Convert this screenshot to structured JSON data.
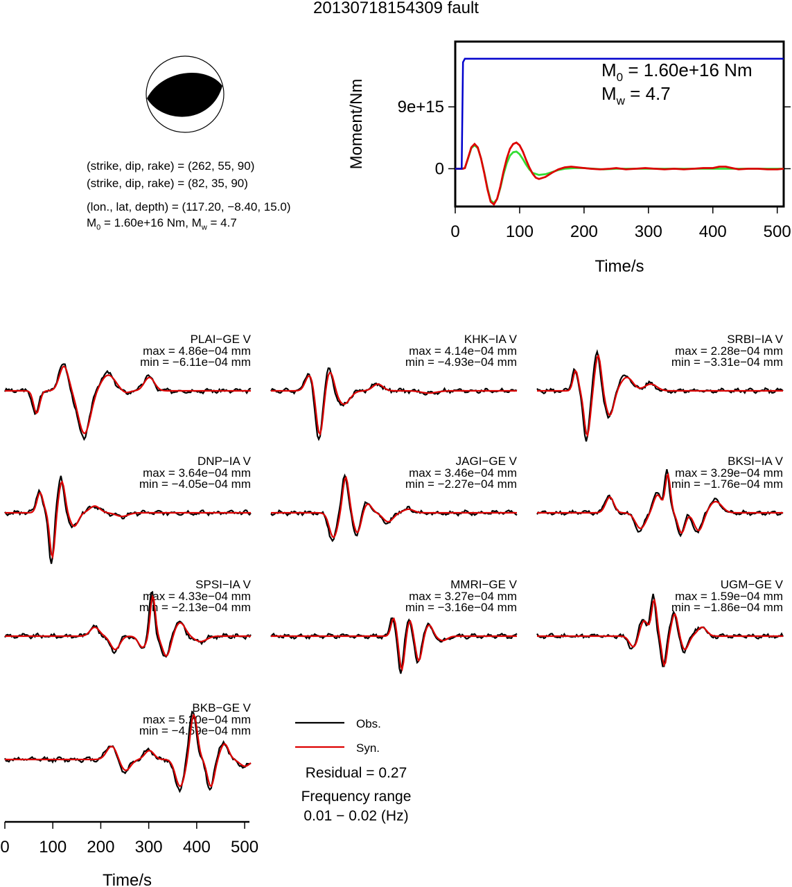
{
  "figure": {
    "title": "20130718154309 fault",
    "solution": {
      "plane1": "(strike, dip, rake) = (262, 55, 90)",
      "plane2": "(strike, dip, rake) = (82, 35, 90)",
      "location": "(lon., lat, depth) = (117.20, −8.40, 15.0)",
      "moment_line_prefix": "M",
      "moment_line_sub1": "0",
      "moment_line_mid": " = 1.60e+16 Nm, M",
      "moment_line_sub2": "w",
      "moment_line_suffix": " = 4.7"
    }
  },
  "chart_data": [
    {
      "type": "line",
      "id": "moment-rate",
      "xlabel": "Time/s",
      "ylabel": "Moment/Nm",
      "xlim": [
        0,
        510
      ],
      "ylim": [
        -5500000000000000.0,
        1.85e+16
      ],
      "xticks": [
        0,
        100,
        200,
        300,
        400,
        500
      ],
      "yticks": [
        {
          "value": 0,
          "label": "0"
        },
        {
          "value": 9000000000000000.0,
          "label": "9e+15"
        }
      ],
      "annotation": {
        "m0_sym": "M",
        "m0_sub": "0",
        "m0_val": " = 1.60e+16 Nm",
        "mw_sym": "M",
        "mw_sub": "w",
        "mw_val": " = 4.7"
      },
      "colors": {
        "cumulative": "#0000cc",
        "green": "#33dd33",
        "red": "#dd0000"
      },
      "series": [
        {
          "key": "cumulative",
          "points": [
            [
              0,
              0
            ],
            [
              10,
              0
            ],
            [
              12,
              1.55e+16
            ],
            [
              15,
              1.6e+16
            ],
            [
              510,
              1.6e+16
            ]
          ]
        },
        {
          "key": "green",
          "points": [
            [
              0,
              0
            ],
            [
              5,
              0
            ],
            [
              10,
              0
            ],
            [
              15,
              100000000000000.0
            ],
            [
              20,
              1500000000000000.0
            ],
            [
              25,
              3000000000000000.0
            ],
            [
              30,
              3400000000000000.0
            ],
            [
              35,
              3000000000000000.0
            ],
            [
              40,
              1500000000000000.0
            ],
            [
              45,
              -500000000000000.0
            ],
            [
              50,
              -2800000000000000.0
            ],
            [
              55,
              -4600000000000000.0
            ],
            [
              60,
              -5000000000000000.0
            ],
            [
              65,
              -4400000000000000.0
            ],
            [
              70,
              -2800000000000000.0
            ],
            [
              75,
              -800000000000000.0
            ],
            [
              80,
              800000000000000.0
            ],
            [
              85,
              1900000000000000.0
            ],
            [
              90,
              2400000000000000.0
            ],
            [
              95,
              2500000000000000.0
            ],
            [
              100,
              2100000000000000.0
            ],
            [
              105,
              1400000000000000.0
            ],
            [
              110,
              600000000000000.0
            ],
            [
              115,
              -100000000000000.0
            ],
            [
              120,
              -600000000000000.0
            ],
            [
              130,
              -900000000000000.0
            ],
            [
              140,
              -800000000000000.0
            ],
            [
              150,
              -500000000000000.0
            ],
            [
              160,
              -200000000000000.0
            ],
            [
              170,
              0
            ],
            [
              185,
              100000000000000.0
            ],
            [
              200,
              100000000000000.0
            ],
            [
              215,
              0
            ],
            [
              230,
              -100000000000000.0
            ],
            [
              250,
              0
            ],
            [
              270,
              0
            ],
            [
              290,
              0
            ],
            [
              320,
              0
            ],
            [
              350,
              0
            ],
            [
              380,
              0
            ],
            [
              420,
              0
            ],
            [
              460,
              0
            ],
            [
              510,
              0
            ]
          ]
        },
        {
          "key": "red",
          "points": [
            [
              0,
              0
            ],
            [
              8,
              0
            ],
            [
              12,
              0
            ],
            [
              15,
              100000000000000.0
            ],
            [
              20,
              1600000000000000.0
            ],
            [
              25,
              3100000000000000.0
            ],
            [
              30,
              3600000000000000.0
            ],
            [
              35,
              3100000000000000.0
            ],
            [
              40,
              1500000000000000.0
            ],
            [
              45,
              -600000000000000.0
            ],
            [
              50,
              -3000000000000000.0
            ],
            [
              55,
              -4800000000000000.0
            ],
            [
              60,
              -5200000000000000.0
            ],
            [
              65,
              -4400000000000000.0
            ],
            [
              70,
              -2600000000000000.0
            ],
            [
              75,
              -400000000000000.0
            ],
            [
              80,
              1500000000000000.0
            ],
            [
              85,
              2900000000000000.0
            ],
            [
              90,
              3600000000000000.0
            ],
            [
              95,
              3800000000000000.0
            ],
            [
              100,
              3400000000000000.0
            ],
            [
              105,
              2500000000000000.0
            ],
            [
              110,
              1300000000000000.0
            ],
            [
              115,
              200000000000000.0
            ],
            [
              120,
              -700000000000000.0
            ],
            [
              125,
              -1300000000000000.0
            ],
            [
              130,
              -1500000000000000.0
            ],
            [
              140,
              -1200000000000000.0
            ],
            [
              150,
              -600000000000000.0
            ],
            [
              160,
              -100000000000000.0
            ],
            [
              170,
              200000000000000.0
            ],
            [
              180,
              300000000000000.0
            ],
            [
              190,
              200000000000000.0
            ],
            [
              200,
              100000000000000.0
            ],
            [
              210,
              0
            ],
            [
              225,
              -100000000000000.0
            ],
            [
              240,
              0
            ],
            [
              250,
              100000000000000.0
            ],
            [
              265,
              -100000000000000.0
            ],
            [
              280,
              0
            ],
            [
              295,
              100000000000000.0
            ],
            [
              310,
              0
            ],
            [
              325,
              -100000000000000.0
            ],
            [
              340,
              0
            ],
            [
              355,
              -100000000000000.0
            ],
            [
              370,
              0
            ],
            [
              385,
              100000000000000.0
            ],
            [
              400,
              100000000000000.0
            ],
            [
              410,
              300000000000000.0
            ],
            [
              420,
              300000000000000.0
            ],
            [
              430,
              100000000000000.0
            ],
            [
              440,
              -100000000000000.0
            ],
            [
              455,
              0
            ],
            [
              470,
              0
            ],
            [
              485,
              -100000000000000.0
            ],
            [
              500,
              -100000000000000.0
            ],
            [
              510,
              0
            ]
          ]
        }
      ]
    },
    {
      "type": "line",
      "id": "waveforms",
      "xlabel": "Time/s",
      "xlim": [
        0,
        510
      ],
      "xticks": [
        0,
        100,
        200,
        300,
        400,
        500
      ],
      "colors": {
        "obs": "#000000",
        "syn": "#dd0000"
      },
      "legend": {
        "obs": "Obs.",
        "syn": "Syn.",
        "residual": "Residual = 0.27",
        "freq1": "Frequency range",
        "freq2": "0.01 − 0.02 (Hz)"
      },
      "stations": [
        {
          "name": "PLAI−GE V",
          "max": "max = 4.86e−04 mm",
          "min": "min = −6.11e−04 mm",
          "pulses": [
            [
              45,
              -0.5,
              6
            ],
            [
              85,
              0.55,
              9
            ],
            [
              115,
              -0.95,
              12
            ],
            [
              150,
              0.35,
              14
            ],
            [
              210,
              0.3,
              10
            ],
            [
              175,
              -0.05,
              8
            ]
          ]
        },
        {
          "name": "KHK−IA V",
          "max": "max = 4.14e−04 mm",
          "min": "min = −4.93e−04 mm",
          "pulses": [
            [
              55,
              0.35,
              8
            ],
            [
              70,
              -1.0,
              7
            ],
            [
              85,
              0.45,
              8
            ],
            [
              105,
              -0.3,
              12
            ],
            [
              155,
              0.15,
              10
            ],
            [
              230,
              -0.05,
              15
            ]
          ]
        },
        {
          "name": "SRBI−IA V",
          "max": "max = 2.28e−04 mm",
          "min": "min = −3.31e−04 mm",
          "pulses": [
            [
              55,
              0.45,
              5
            ],
            [
              72,
              -1.0,
              6
            ],
            [
              88,
              0.8,
              6
            ],
            [
              105,
              -0.55,
              8
            ],
            [
              130,
              0.3,
              12
            ],
            [
              165,
              0.15,
              12
            ]
          ]
        },
        {
          "name": "DNP−IA V",
          "max": "max = 3.64e−04 mm",
          "min": "min = −4.05e−04 mm",
          "pulses": [
            [
              50,
              0.45,
              6
            ],
            [
              68,
              -1.0,
              5
            ],
            [
              82,
              0.7,
              6
            ],
            [
              100,
              -0.3,
              8
            ],
            [
              130,
              0.15,
              10
            ],
            [
              170,
              -0.08,
              12
            ]
          ]
        },
        {
          "name": "JAGI−GE V",
          "max": "max = 3.46e−04 mm",
          "min": "min = −2.27e−04 mm",
          "pulses": [
            [
              90,
              -0.55,
              8
            ],
            [
              108,
              0.8,
              6
            ],
            [
              125,
              -0.45,
              7
            ],
            [
              140,
              0.2,
              8
            ],
            [
              170,
              -0.2,
              10
            ],
            [
              200,
              0.08,
              10
            ]
          ]
        },
        {
          "name": "BKSI−IA V",
          "max": "max = 3.29e−04 mm",
          "min": "min = −1.76e−04 mm",
          "pulses": [
            [
              105,
              0.35,
              8
            ],
            [
              150,
              -0.35,
              10
            ],
            [
              175,
              0.4,
              8
            ],
            [
              190,
              0.85,
              5
            ],
            [
              210,
              -0.45,
              7
            ],
            [
              235,
              -0.4,
              9
            ],
            [
              260,
              0.25,
              12
            ]
          ]
        },
        {
          "name": "SPSI−IA V",
          "max": "max = 4.33e−04 mm",
          "min": "min = −2.13e−04 mm",
          "pulses": [
            [
              130,
              0.2,
              9
            ],
            [
              160,
              -0.3,
              9
            ],
            [
              200,
              -0.25,
              8
            ],
            [
              215,
              0.9,
              5
            ],
            [
              235,
              -0.45,
              8
            ],
            [
              255,
              0.3,
              10
            ],
            [
              285,
              -0.12,
              12
            ]
          ]
        },
        {
          "name": "MMRI−GE V",
          "max": "max = 3.27e−04 mm",
          "min": "min = −3.16e−04 mm",
          "pulses": [
            [
              178,
              0.4,
              5
            ],
            [
              190,
              -0.75,
              5
            ],
            [
              202,
              0.35,
              5
            ],
            [
              215,
              -0.55,
              6
            ],
            [
              230,
              0.25,
              7
            ],
            [
              250,
              -0.1,
              9
            ]
          ]
        },
        {
          "name": "UGM−GE V",
          "max": "max = 1.59e−04 mm",
          "min": "min = −1.86e−04 mm",
          "pulses": [
            [
              140,
              -0.25,
              8
            ],
            [
              155,
              0.35,
              8
            ],
            [
              170,
              0.8,
              5
            ],
            [
              185,
              -0.65,
              5
            ],
            [
              200,
              0.5,
              6
            ],
            [
              215,
              -0.3,
              7
            ],
            [
              240,
              0.2,
              9
            ]
          ]
        },
        {
          "name": "BKB−GE V",
          "max": "max = 5.20e−04 mm",
          "min": "min = −4.69e−04 mm",
          "pulses": [
            [
              155,
              0.3,
              10
            ],
            [
              175,
              -0.25,
              10
            ],
            [
              210,
              0.2,
              9
            ],
            [
              255,
              -0.6,
              9
            ],
            [
              275,
              1.0,
              7
            ],
            [
              300,
              -0.6,
              7
            ],
            [
              320,
              0.35,
              8
            ],
            [
              350,
              -0.15,
              10
            ]
          ]
        }
      ]
    }
  ]
}
